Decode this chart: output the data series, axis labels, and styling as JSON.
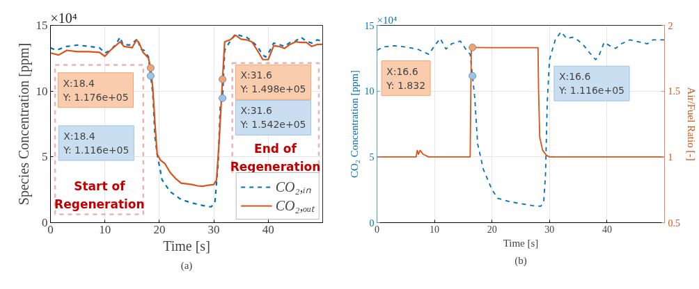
{
  "chart_data": [
    {
      "type": "line",
      "xlabel": "Time [s]",
      "ylabel": "Species Concentration [ppm]",
      "xlim": [
        0,
        50
      ],
      "xticks": [
        0,
        10,
        20,
        30,
        40
      ],
      "ylim": [
        0,
        15
      ],
      "yticks": [
        0,
        5,
        10,
        15
      ],
      "grid": true,
      "legend": "bottom right",
      "series": [
        {
          "name": "CO₂,ᵢₙ",
          "color": "#0072bd",
          "line_style": "dashed",
          "marker": "none",
          "x": [
            0,
            1,
            3,
            5,
            7,
            9,
            10,
            11,
            12,
            12.8,
            13.3,
            14.5,
            15.5,
            16,
            16.5,
            17.2,
            18,
            18.4,
            18.8,
            19.2,
            19.6,
            20.5,
            22,
            24,
            26,
            28,
            29.5,
            30.2,
            30.8,
            31.2,
            31.6,
            32,
            33,
            34,
            35,
            36,
            37,
            38,
            39,
            39.5,
            40,
            41,
            42,
            43,
            44,
            45,
            46,
            47,
            48,
            49,
            50
          ],
          "values": [
            13.3,
            13.1,
            13.4,
            13.5,
            13.4,
            13.3,
            12.9,
            13.1,
            13.55,
            14.1,
            13.55,
            13.5,
            13.8,
            14.0,
            13.2,
            13.1,
            12.6,
            11.16,
            9.8,
            6.5,
            5.2,
            3.25,
            2.35,
            1.75,
            1.5,
            1.3,
            1.2,
            1.5,
            4.5,
            9.0,
            9.47,
            13.1,
            13.8,
            14.35,
            14.2,
            14.1,
            13.8,
            13.4,
            12.75,
            12.6,
            12.85,
            13.65,
            13.55,
            13.4,
            13.7,
            13.8,
            14.1,
            13.8,
            13.65,
            13.9,
            13.8
          ]
        },
        {
          "name": "CO₂,ₒᵤₜ",
          "color": "#d95319",
          "line_style": "solid",
          "marker": "none",
          "x": [
            0,
            1.5,
            3,
            5,
            7,
            9,
            10,
            11,
            12.8,
            13.5,
            15,
            15.8,
            16.3,
            17,
            18,
            18.4,
            18.8,
            19.2,
            19.6,
            20.2,
            21,
            22,
            23,
            24,
            25,
            26,
            27,
            28,
            29,
            30,
            30.5,
            31,
            31.6,
            32,
            33,
            34,
            35,
            36,
            37,
            38,
            39,
            40,
            41,
            42,
            43,
            44,
            45,
            46,
            47,
            48,
            49,
            50
          ],
          "values": [
            12.9,
            12.75,
            13.1,
            13.0,
            13.0,
            12.95,
            12.65,
            13.1,
            13.75,
            13.4,
            13.3,
            13.9,
            13.65,
            12.95,
            12.5,
            11.76,
            10.2,
            7.5,
            5.2,
            4.75,
            4.5,
            3.8,
            3.35,
            3.0,
            2.95,
            2.9,
            2.8,
            2.77,
            2.85,
            2.9,
            3.25,
            6.3,
            10.9,
            13.75,
            13.9,
            14.25,
            13.95,
            13.9,
            13.75,
            13.1,
            12.4,
            12.4,
            13.45,
            13.4,
            13.25,
            13.55,
            13.75,
            13.7,
            13.7,
            13.4,
            13.55,
            13.55
          ]
        },
        {
          "type": "scatter",
          "color": "#f4a46b",
          "marker": "circle",
          "x": [
            18.4,
            31.6
          ],
          "values": [
            11.76,
            10.9
          ]
        },
        {
          "type": "scatter",
          "color": "#9dc3e6",
          "marker": "circle",
          "x": [
            18.4,
            31.6
          ],
          "values": [
            11.16,
            9.47
          ]
        }
      ],
      "annotations": [
        "×10⁴",
        "X:18.4\nY: 1.176e+05",
        "X:18.4\nY: 1.116e+05",
        "X:31.6\nY: 1.498e+05",
        "X:31.6\nY: 1.542e+05",
        "Start of\nRegeneration",
        "End of\nRegeneration",
        "(a)"
      ]
    },
    {
      "type": "line",
      "xlabel": "Time [s]",
      "ylabel": "CO₂ Concentration [ppm]",
      "y2label": "Air/Fuel Ratio [-]",
      "xlim": [
        0,
        50
      ],
      "xticks": [
        0,
        10,
        20,
        30,
        40
      ],
      "ylim": [
        0,
        15
      ],
      "yticks": [
        0,
        5,
        10,
        15
      ],
      "y2lim": [
        0.5,
        2
      ],
      "y2ticks": [
        0.5,
        1,
        1.5,
        2
      ],
      "grid": true,
      "series": [
        {
          "color": "#0072bd",
          "line_style": "dashed",
          "marker": "none",
          "x": [
            0,
            1,
            3,
            5,
            7,
            9,
            10,
            11,
            12,
            13,
            14.5,
            15.5,
            16.2,
            16.6,
            17,
            17.5,
            18.5,
            20,
            21,
            23,
            25,
            27,
            28.5,
            29,
            29.3,
            29.6,
            30,
            31,
            32,
            33,
            34,
            35,
            36,
            37,
            38,
            38.5,
            39.5,
            40.5,
            41.5,
            42.5,
            44,
            45,
            46,
            47,
            48,
            50
          ],
          "values": [
            13.1,
            13.35,
            13.45,
            13.35,
            13.2,
            12.8,
            13.45,
            14.0,
            13.2,
            13.6,
            13.8,
            13.15,
            12.8,
            11.16,
            9.5,
            6.0,
            4.05,
            2.5,
            1.85,
            1.6,
            1.45,
            1.3,
            1.25,
            1.65,
            3.6,
            9.1,
            12.4,
            13.9,
            14.5,
            14.0,
            14.1,
            13.85,
            13.45,
            12.9,
            12.4,
            12.6,
            13.7,
            13.45,
            13.25,
            13.6,
            13.9,
            13.8,
            13.7,
            13.6,
            13.9,
            13.9
          ]
        },
        {
          "color": "#d95319",
          "axis": "y2",
          "line_style": "solid",
          "marker": "none",
          "x": [
            0,
            3,
            6.8,
            7,
            7.2,
            7.5,
            8,
            9,
            12,
            16.2,
            16.4,
            16.6,
            20,
            24,
            28,
            28.1,
            28.3,
            28.8,
            29.5,
            30,
            35,
            40,
            45,
            50
          ],
          "values": [
            1.0,
            1.0,
            1.0,
            1.05,
            1.02,
            1.05,
            1.02,
            1.0,
            1.0,
            1.0,
            1.832,
            1.832,
            1.83,
            1.83,
            1.83,
            1.5,
            1.15,
            1.05,
            1.01,
            1.0,
            1.0,
            1.0,
            1.0,
            1.0
          ]
        },
        {
          "type": "scatter",
          "color": "#f4a46b",
          "marker": "circle",
          "axis": "y2",
          "x": [
            16.6
          ],
          "values": [
            1.832
          ]
        },
        {
          "type": "scatter",
          "color": "#9dc3e6",
          "marker": "circle",
          "x": [
            16.6
          ],
          "values": [
            11.16
          ]
        }
      ],
      "annotations": [
        "×10⁴",
        "X:16.6\nY: 1.832",
        "X:16.6\nY: 1.116e+05",
        "(b)"
      ]
    }
  ]
}
